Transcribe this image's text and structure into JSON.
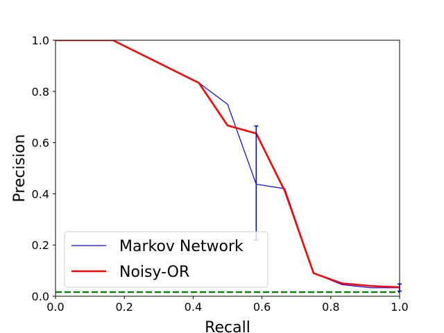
{
  "chart_data": {
    "type": "line",
    "title": "",
    "xlabel": "Recall",
    "ylabel": "Precision",
    "xlim": [
      0.0,
      1.0
    ],
    "ylim": [
      0.0,
      1.0
    ],
    "xticks": [
      "0.0",
      "0.2",
      "0.4",
      "0.6",
      "0.8",
      "1.0"
    ],
    "yticks": [
      "0.0",
      "0.2",
      "0.4",
      "0.6",
      "0.8",
      "1.0"
    ],
    "grid": false,
    "legend_position": "lower-left",
    "series": [
      {
        "name": "Markov Network",
        "color": "#0000ff",
        "x": [
          0.0,
          0.1667,
          0.4167,
          0.5,
          0.5833,
          0.6667,
          0.75,
          0.8333,
          0.9167,
          1.0
        ],
        "y": [
          1.0,
          1.0,
          0.8333,
          0.75,
          0.4375,
          0.42,
          0.09,
          0.045,
          0.033,
          0.033
        ],
        "error_bars": [
          {
            "x": 0.5833,
            "low": 0.22,
            "high": 0.665
          },
          {
            "x": 1.0,
            "low": 0.02,
            "high": 0.048
          }
        ]
      },
      {
        "name": "Noisy-OR",
        "color": "#ff0000",
        "x": [
          0.0,
          0.1667,
          0.4167,
          0.5,
          0.5833,
          0.6667,
          0.75,
          0.8333,
          0.9167,
          1.0
        ],
        "y": [
          1.0,
          1.0,
          0.8333,
          0.667,
          0.636,
          0.41,
          0.09,
          0.05,
          0.04,
          0.035
        ]
      }
    ],
    "baseline": {
      "name": "baseline",
      "color": "#008000",
      "style": "dashed",
      "y": 0.016
    }
  }
}
